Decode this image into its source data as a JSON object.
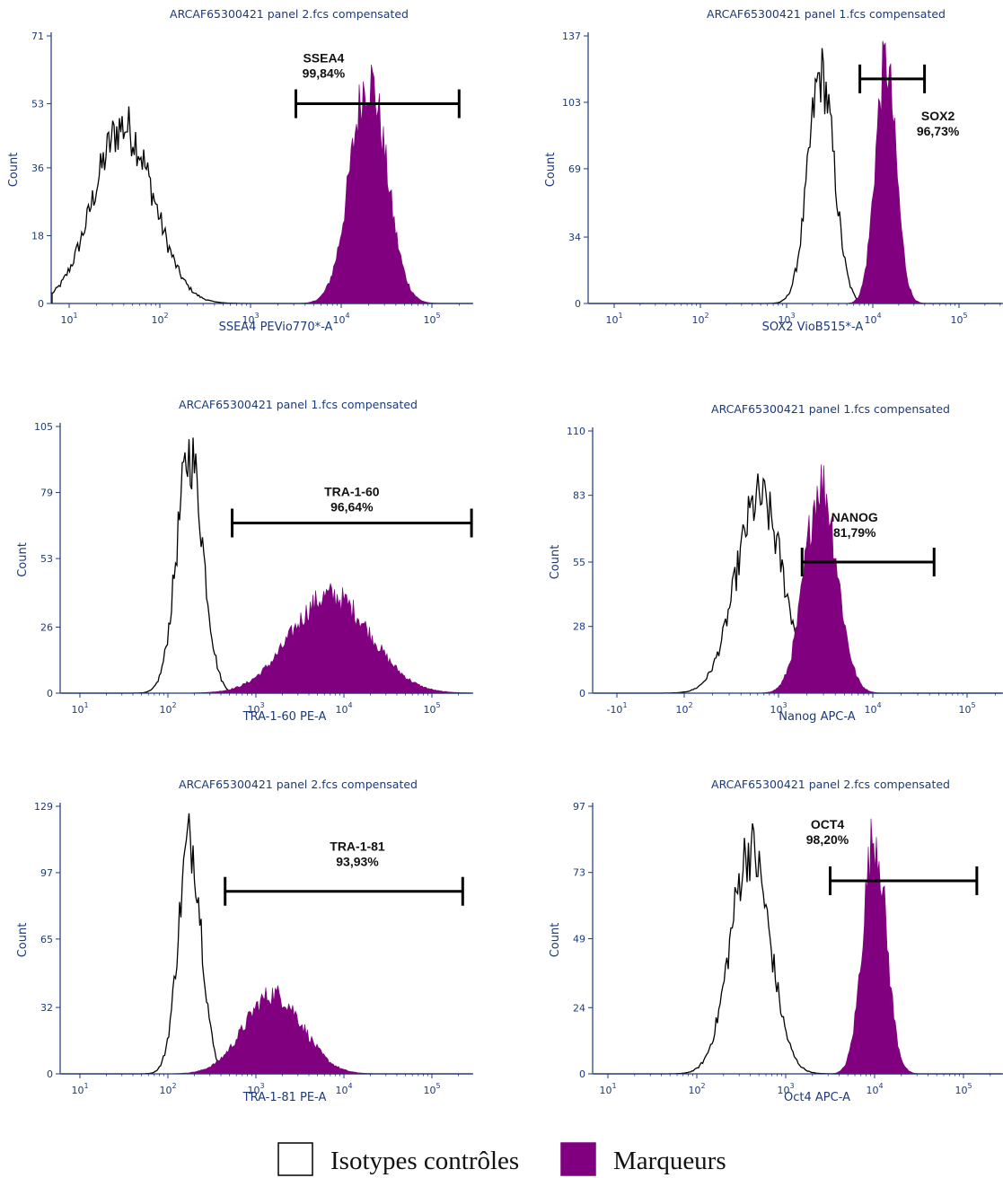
{
  "colors": {
    "marker": "#800080",
    "isotype": "#000000",
    "axis": "#1c3a7a",
    "gate": "#000000"
  },
  "legend": {
    "items": [
      {
        "label": "Isotypes contrôles",
        "swatch": "outline"
      },
      {
        "label": "Marqueurs",
        "swatch": "filled"
      }
    ]
  },
  "chart_data": [
    {
      "type": "histogram",
      "title": "ARCAF65300421 panel 2.fcs compensated",
      "xlabel": "SSEA4 PEVio770*-A",
      "ylabel": "Count",
      "yticks": [
        0,
        18,
        36,
        53,
        71
      ],
      "ylim": [
        0,
        71
      ],
      "xscale": "log",
      "xticks": [
        "10^1",
        "10^2",
        "10^3",
        "10^4",
        "10^5"
      ],
      "series": [
        {
          "name": "Isotypes contrôles",
          "style": "outline",
          "peak_log10": 1.6,
          "peak_count": 49,
          "spread": 0.33
        },
        {
          "name": "Marqueurs",
          "style": "filled",
          "peak_log10": 4.3,
          "peak_count": 62,
          "spread": 0.2
        }
      ],
      "gate": {
        "label": "SSEA4",
        "percent": "99,84%",
        "from_log10": 3.5,
        "to_log10": 5.3,
        "level": 53
      }
    },
    {
      "type": "histogram",
      "title": "ARCAF65300421 panel 1.fcs compensated",
      "xlabel": "SOX2 VioB515*-A",
      "ylabel": "Count",
      "yticks": [
        0,
        34,
        69,
        103,
        137
      ],
      "ylim": [
        0,
        137
      ],
      "xscale": "log",
      "xticks": [
        "10^1",
        "10^2",
        "10^3",
        "10^4",
        "10^5"
      ],
      "series": [
        {
          "name": "Isotypes contrôles",
          "style": "outline",
          "peak_log10": 3.4,
          "peak_count": 122,
          "spread": 0.15
        },
        {
          "name": "Marqueurs",
          "style": "filled",
          "peak_log10": 4.15,
          "peak_count": 128,
          "spread": 0.12
        }
      ],
      "gate": {
        "label": "SOX2",
        "percent": "96,73%",
        "from_log10": 3.85,
        "to_log10": 4.6,
        "level": 115
      }
    },
    {
      "type": "histogram",
      "title": "ARCAF65300421 panel 1.fcs compensated",
      "xlabel": "TRA-1-60 PE-A",
      "ylabel": "Count",
      "yticks": [
        0,
        26,
        53,
        79,
        105
      ],
      "ylim": [
        0,
        105
      ],
      "xscale": "log",
      "xticks": [
        "10^1",
        "10^2",
        "10^3",
        "10^4",
        "10^5"
      ],
      "series": [
        {
          "name": "Isotypes contrôles",
          "style": "outline",
          "peak_log10": 2.25,
          "peak_count": 98,
          "spread": 0.15
        },
        {
          "name": "Marqueurs",
          "style": "filled",
          "peak_log10": 3.85,
          "peak_count": 40,
          "spread": 0.45
        }
      ],
      "gate": {
        "label": "TRA-1-60",
        "percent": "96,64%",
        "from_log10": 2.73,
        "to_log10": 5.45,
        "level": 67
      }
    },
    {
      "type": "histogram",
      "title": "ARCAF65300421 panel 1.fcs compensated",
      "xlabel": "Nanog APC-A",
      "ylabel": "Count",
      "yticks": [
        0,
        28,
        55,
        83,
        110
      ],
      "ylim": [
        0,
        110
      ],
      "xscale": "biexponential",
      "xticks": [
        "-10^1",
        "10^2",
        "10^3",
        "10^4",
        "10^5"
      ],
      "series": [
        {
          "name": "Isotypes contrôles",
          "style": "outline",
          "peak_log10": 2.8,
          "peak_count": 85,
          "spread": 0.25
        },
        {
          "name": "Marqueurs",
          "style": "filled",
          "peak_log10": 3.45,
          "peak_count": 92,
          "spread": 0.17
        }
      ],
      "gate": {
        "label": "NANOG",
        "percent": "81,79%",
        "from_log10": 3.25,
        "to_log10": 4.65,
        "level": 55
      }
    },
    {
      "type": "histogram",
      "title": "ARCAF65300421 panel 2.fcs compensated",
      "xlabel": "TRA-1-81 PE-A",
      "ylabel": "Count",
      "yticks": [
        0,
        32,
        65,
        97,
        129
      ],
      "ylim": [
        0,
        129
      ],
      "xscale": "log",
      "xticks": [
        "10^1",
        "10^2",
        "10^3",
        "10^4",
        "10^5"
      ],
      "series": [
        {
          "name": "Isotypes contrôles",
          "style": "outline",
          "peak_log10": 2.25,
          "peak_count": 118,
          "spread": 0.13
        },
        {
          "name": "Marqueurs",
          "style": "filled",
          "peak_log10": 3.2,
          "peak_count": 40,
          "spread": 0.33
        }
      ],
      "gate": {
        "label": "TRA-1-81",
        "percent": "93,93%",
        "from_log10": 2.65,
        "to_log10": 5.35,
        "level": 88
      }
    },
    {
      "type": "histogram",
      "title": "ARCAF65300421 panel 2.fcs compensated",
      "xlabel": "Oct4 APC-A",
      "ylabel": "Count",
      "yticks": [
        0,
        24,
        49,
        73,
        97
      ],
      "ylim": [
        0,
        97
      ],
      "xscale": "log",
      "xticks": [
        "10^1",
        "10^2",
        "10^3",
        "10^4",
        "10^5"
      ],
      "series": [
        {
          "name": "Isotypes contrôles",
          "style": "outline",
          "peak_log10": 2.6,
          "peak_count": 85,
          "spread": 0.22
        },
        {
          "name": "Marqueurs",
          "style": "filled",
          "peak_log10": 4.0,
          "peak_count": 90,
          "spread": 0.13
        }
      ],
      "gate": {
        "label": "OCT4",
        "percent": "98,20%",
        "from_log10": 3.5,
        "to_log10": 5.15,
        "level": 70
      }
    }
  ]
}
